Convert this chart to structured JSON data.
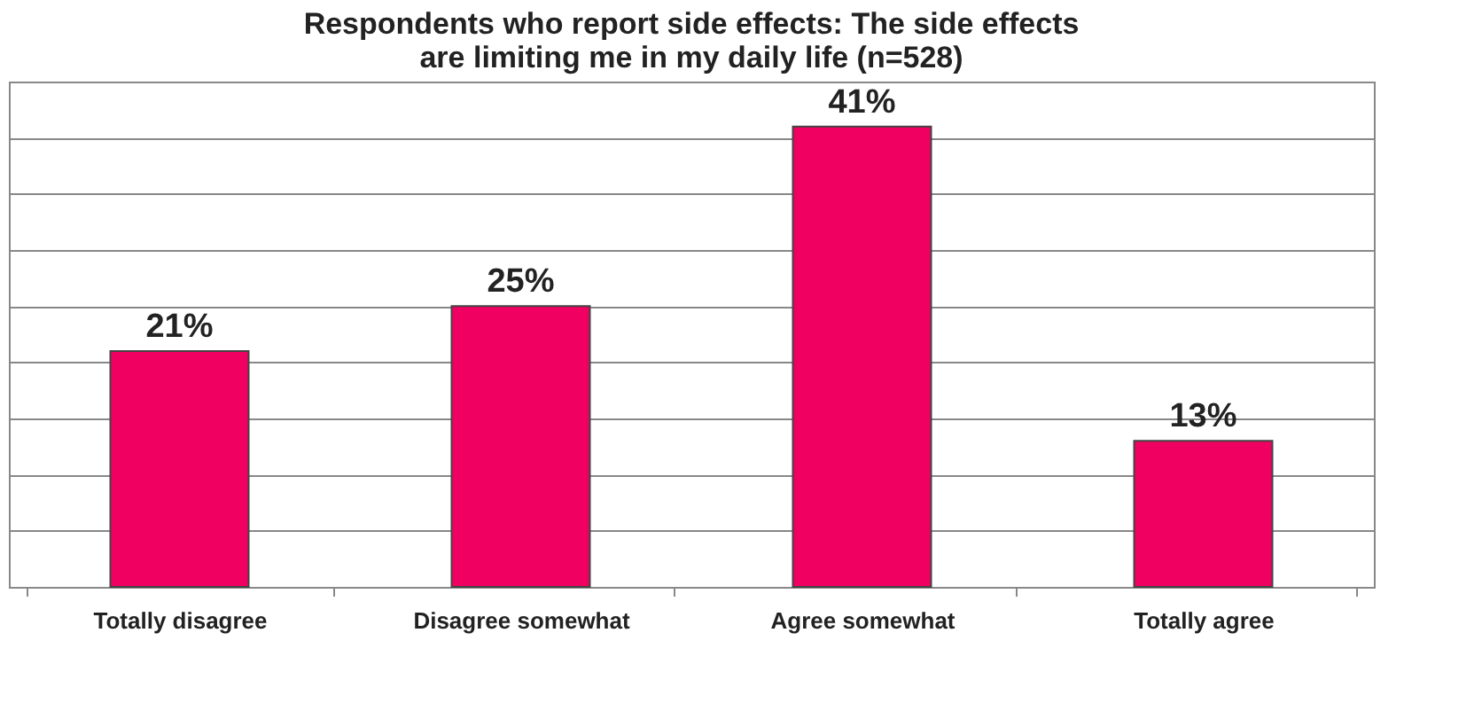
{
  "chart_data": {
    "type": "bar",
    "title": "Respondents who report side effects: The side effects are limiting me in my daily life (n=528)",
    "categories": [
      "Totally disagree",
      "Disagree somewhat",
      "Agree somewhat",
      "Totally agree"
    ],
    "values": [
      21,
      25,
      41,
      13
    ],
    "value_labels": [
      "21%",
      "25%",
      "41%",
      "13%"
    ],
    "color": "#f00060",
    "grid": "y",
    "tick_labels": "x"
  }
}
